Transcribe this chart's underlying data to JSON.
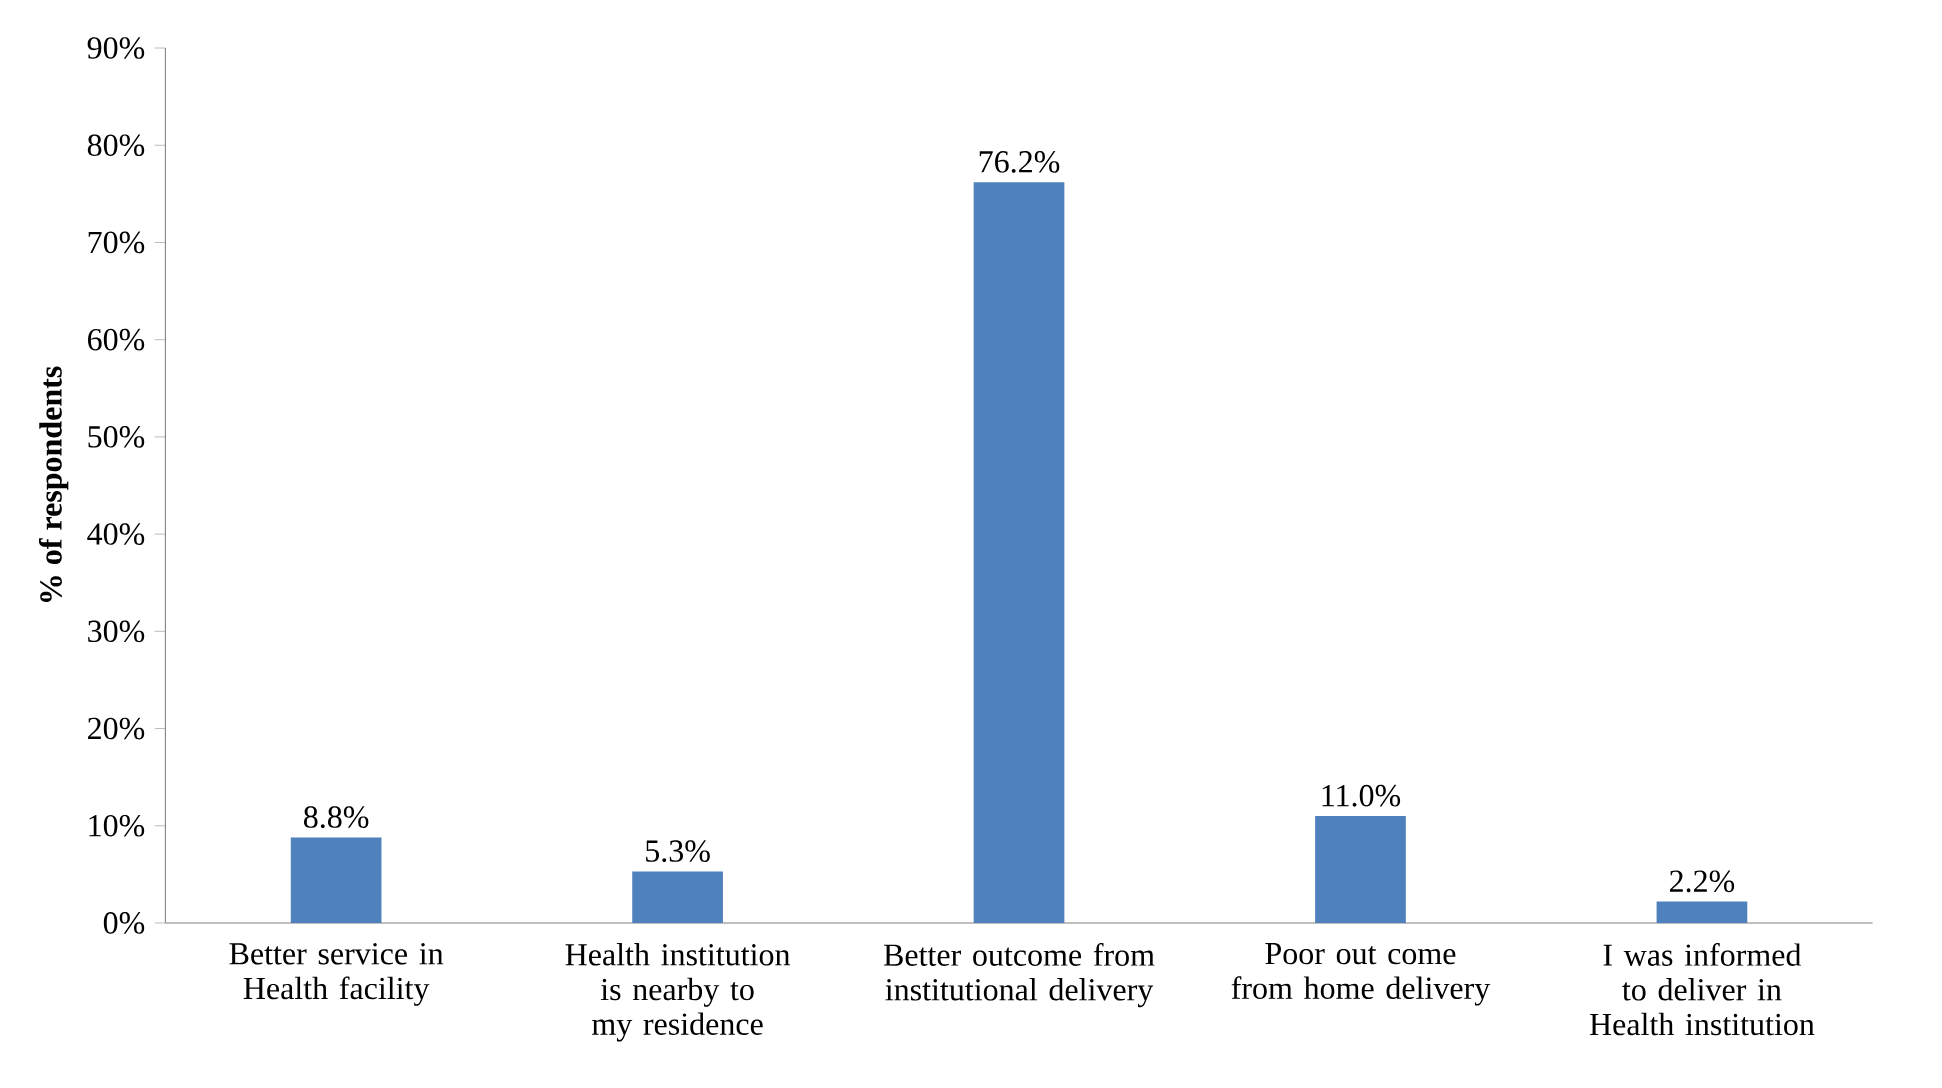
{
  "chart_data": {
    "type": "bar",
    "ylabel": "% of respondents",
    "categories": [
      "Better service in Health facility",
      "Health institution is nearby to my residence",
      "Better outcome from institutional delivery",
      "Poor out come from home delivery",
      "I was informed to deliver in Health institution"
    ],
    "values": [
      8.8,
      5.3,
      76.2,
      11.0,
      2.2
    ],
    "value_labels": [
      "8.8%",
      "5.3%",
      "76.2%",
      "11.0%",
      "2.2%"
    ],
    "color": "#4f81bd",
    "ylim": [
      0,
      90
    ],
    "yticks": [
      {
        "value": 0,
        "label": "0%"
      },
      {
        "value": 10,
        "label": "10%"
      },
      {
        "value": 20,
        "label": "20%"
      },
      {
        "value": 30,
        "label": "30%"
      },
      {
        "value": 40,
        "label": "40%"
      },
      {
        "value": 50,
        "label": "50%"
      },
      {
        "value": 60,
        "label": "60%"
      },
      {
        "value": 70,
        "label": "70%"
      },
      {
        "value": 80,
        "label": "80%"
      },
      {
        "value": 90,
        "label": "90%"
      }
    ]
  }
}
